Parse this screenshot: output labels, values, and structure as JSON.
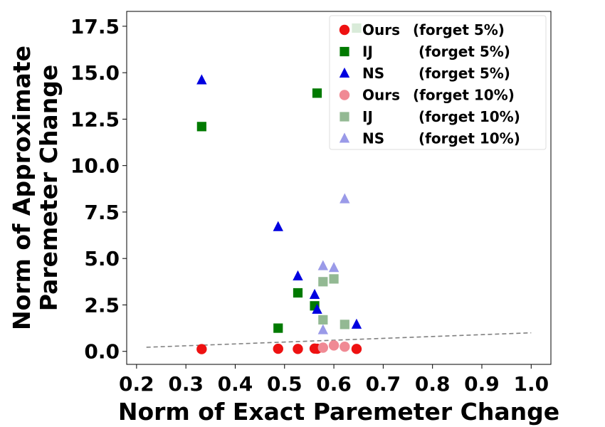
{
  "chart_data": {
    "type": "scatter",
    "title": "",
    "xlabel": "Norm of Exact Paremeter Change",
    "ylabel_lines": [
      "Norm of Approximate",
      "Paremeter Change"
    ],
    "xlim": [
      0.18,
      1.04
    ],
    "ylim": [
      -0.7,
      18.3
    ],
    "xticks": [
      "0.2",
      "0.3",
      "0.4",
      "0.5",
      "0.6",
      "0.7",
      "0.8",
      "0.9",
      "1.0"
    ],
    "xtick_values": [
      0.2,
      0.3,
      0.4,
      0.5,
      0.6,
      0.7,
      0.8,
      0.9,
      1.0
    ],
    "yticks": [
      "0.0",
      "2.5",
      "5.0",
      "7.5",
      "10.0",
      "12.5",
      "15.0",
      "17.5"
    ],
    "ytick_values": [
      0.0,
      2.5,
      5.0,
      7.5,
      10.0,
      12.5,
      15.0,
      17.5
    ],
    "grid": false,
    "legend_position": "top-right",
    "reference_line": {
      "x": [
        0.22,
        1.0
      ],
      "y": [
        0.22,
        1.0
      ],
      "style": "dashed",
      "color": "#808080"
    },
    "series": [
      {
        "name": "Ours (forget 5%)",
        "legend_label": "Ours",
        "legend_suffix": "(forget 5%)",
        "marker": "circle",
        "color": "#ee1111",
        "alpha": 1.0,
        "x": [
          0.332,
          0.487,
          0.527,
          0.561,
          0.566,
          0.646
        ],
        "y": [
          0.12,
          0.14,
          0.13,
          0.15,
          0.14,
          0.13
        ]
      },
      {
        "name": "IJ (forget 5%)",
        "legend_label": "IJ",
        "legend_suffix": "(forget 5%)",
        "marker": "square",
        "color": "#007a00",
        "alpha": 1.0,
        "x": [
          0.332,
          0.487,
          0.527,
          0.561,
          0.566,
          0.646
        ],
        "y": [
          12.1,
          1.25,
          3.15,
          2.45,
          13.9,
          17.4
        ]
      },
      {
        "name": "NS (forget 5%)",
        "legend_label": "NS",
        "legend_suffix": "(forget 5%)",
        "marker": "triangle",
        "color": "#0000e0",
        "alpha": 1.0,
        "x": [
          0.332,
          0.487,
          0.527,
          0.561,
          0.566,
          0.646
        ],
        "y": [
          14.6,
          6.7,
          4.05,
          3.05,
          2.25,
          1.45
        ]
      },
      {
        "name": "Ours (forget 10%)",
        "legend_label": "Ours",
        "legend_suffix": "(forget 10%)",
        "marker": "circle",
        "color": "#f08a94",
        "alpha": 1.0,
        "x": [
          0.578,
          0.6,
          0.622
        ],
        "y": [
          0.2,
          0.32,
          0.25
        ]
      },
      {
        "name": "IJ (forget 10%)",
        "legend_label": "IJ",
        "legend_suffix": "(forget 10%)",
        "marker": "square",
        "color": "#93b993",
        "alpha": 1.0,
        "x": [
          0.578,
          0.578,
          0.6,
          0.622
        ],
        "y": [
          3.75,
          1.7,
          3.9,
          1.45
        ]
      },
      {
        "name": "NS (forget 10%)",
        "legend_label": "NS",
        "legend_suffix": "(forget 10%)",
        "marker": "triangle",
        "color": "#9a9ae8",
        "alpha": 1.0,
        "x": [
          0.578,
          0.578,
          0.6,
          0.622
        ],
        "y": [
          4.6,
          1.15,
          4.5,
          8.2
        ]
      }
    ]
  }
}
